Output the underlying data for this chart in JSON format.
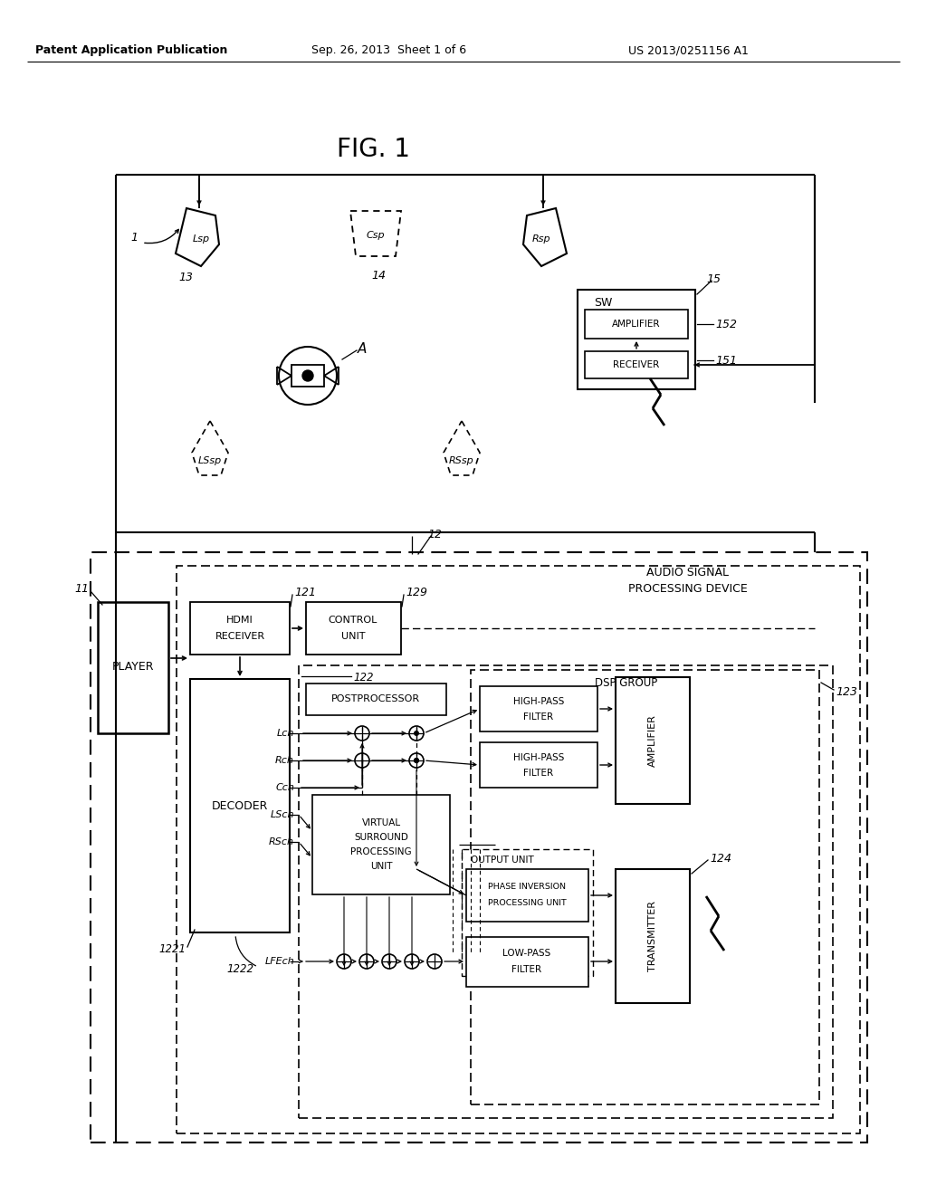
{
  "header_left": "Patent Application Publication",
  "header_center": "Sep. 26, 2013  Sheet 1 of 6",
  "header_right": "US 2013/0251156 A1",
  "fig_title": "FIG. 1",
  "bg_color": "#ffffff",
  "line_color": "#000000",
  "text_color": "#000000"
}
